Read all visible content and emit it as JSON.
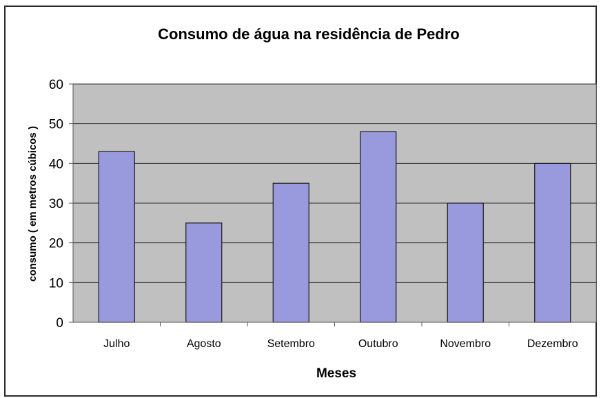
{
  "chart_data": {
    "type": "bar",
    "title": "Consumo de água  na residência de Pedro",
    "xlabel": "Meses",
    "ylabel": "consumo ( em metros cúbicos )",
    "categories": [
      "Julho",
      "Agosto",
      "Setembro",
      "Outubro",
      "Novembro",
      "Dezembro"
    ],
    "values": [
      43,
      25,
      35,
      48,
      30,
      40
    ],
    "ylim": [
      0,
      60
    ],
    "yticks": [
      "0",
      "10",
      "20",
      "30",
      "40",
      "50",
      "60"
    ],
    "grid": true,
    "legend": "none",
    "colors": {
      "bar": "#9999dd",
      "bar_stroke": "#1a1a1a",
      "plot_bg": "#c0c0c0",
      "gridline": "#2b2b2b"
    }
  }
}
